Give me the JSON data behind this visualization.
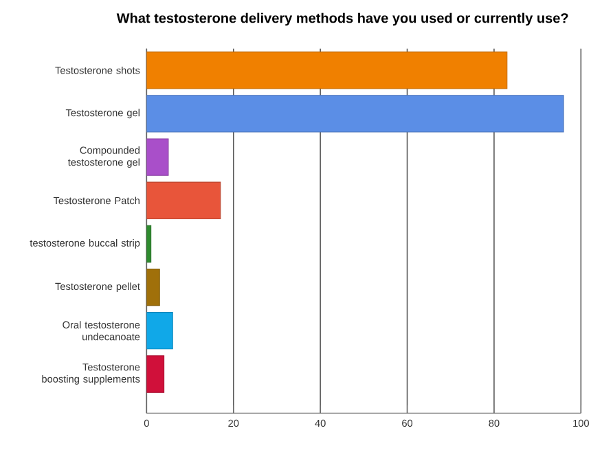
{
  "chart_data": {
    "type": "bar",
    "orientation": "horizontal",
    "title": "What testosterone delivery methods have you used or currently use?",
    "categories": [
      "Testosterone shots",
      "Testosterone gel",
      "Compounded testosterone gel",
      "Testosterone Patch",
      "testosterone buccal strip",
      "Testosterone pellet",
      "Oral testosterone undecanoate",
      "Testosterone boosting supplements"
    ],
    "values": [
      83,
      96,
      5,
      17,
      1,
      3,
      6,
      4
    ],
    "colors": [
      "#f08000",
      "#5b8ee6",
      "#a94fc9",
      "#e8553a",
      "#2e8b2e",
      "#a0700a",
      "#10a8e8",
      "#d0103a"
    ],
    "xlim": [
      0,
      100
    ],
    "xticks": [
      0,
      20,
      40,
      60,
      80,
      100
    ],
    "grid": "x"
  }
}
